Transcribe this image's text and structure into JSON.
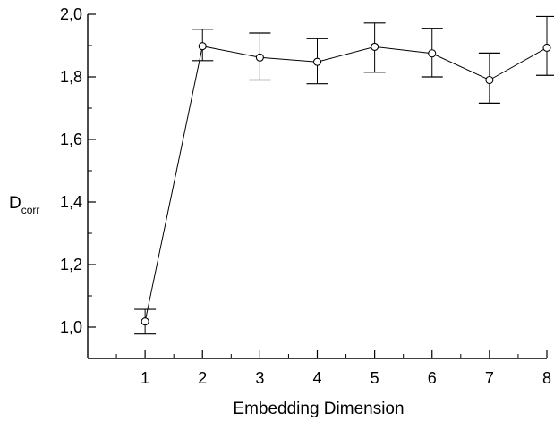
{
  "chart_data": {
    "type": "line",
    "xlabel": "Embedding Dimension",
    "ylabel": "D",
    "ylabel_subscript": "corr",
    "xlim": [
      0,
      8
    ],
    "ylim": [
      0.9,
      2.0
    ],
    "x_ticks": [
      1,
      2,
      3,
      4,
      5,
      6,
      7,
      8
    ],
    "x_tick_labels": [
      "1",
      "2",
      "3",
      "4",
      "5",
      "6",
      "7",
      "8"
    ],
    "y_ticks": [
      1.0,
      1.2,
      1.4,
      1.6,
      1.8,
      2.0
    ],
    "y_tick_labels": [
      "1,0",
      "1,2",
      "1,4",
      "1,6",
      "1,8",
      "2,0"
    ],
    "grid": false,
    "marker": "open-circle",
    "color": "#000000",
    "series": [
      {
        "x": [
          1,
          2,
          3,
          4,
          5,
          6,
          7,
          8
        ],
        "y": [
          1.018,
          1.898,
          1.862,
          1.848,
          1.896,
          1.875,
          1.79,
          1.893
        ],
        "error_low": [
          0.978,
          1.852,
          1.79,
          1.778,
          1.815,
          1.8,
          1.716,
          1.805
        ],
        "error_high": [
          1.057,
          1.952,
          1.94,
          1.922,
          1.972,
          1.955,
          1.876,
          1.993
        ]
      }
    ]
  }
}
